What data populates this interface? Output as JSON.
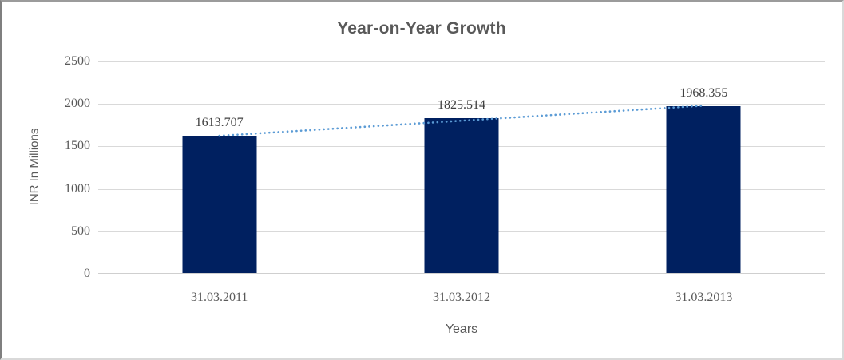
{
  "chart_data": {
    "type": "bar",
    "title": "Year-on-Year Growth",
    "categories": [
      "31.03.2011",
      "31.03.2012",
      "31.03.2013"
    ],
    "values": [
      1613.707,
      1825.514,
      1968.355
    ],
    "data_labels": [
      "1613.707",
      "1825.514",
      "1968.355"
    ],
    "xlabel": "Years",
    "ylabel": "INR In Millions",
    "ylim": [
      0,
      2500
    ],
    "ytick_interval": 500,
    "ytick_labels": [
      "2500",
      "2000",
      "1500",
      "1000",
      "500",
      "0"
    ],
    "grid": "horizontal",
    "legend": "none",
    "trendline": {
      "type": "linear",
      "style": "dotted-round"
    },
    "colors": {
      "bar": "#002060",
      "trendline": "#5B9BD5",
      "gridline": "#D9D9D9",
      "title_text": "#595959",
      "axis_text": "#595959",
      "data_label_text": "#3F3F3F"
    }
  }
}
